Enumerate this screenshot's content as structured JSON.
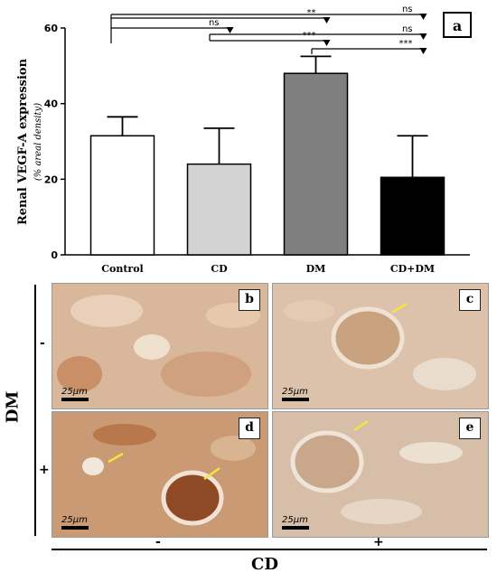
{
  "chart_data": {
    "type": "bar",
    "panel_label": "a",
    "ylabel": "Renal VEGF-A expression",
    "ylabel_sub": "(% areal density)",
    "ylim": [
      0,
      60
    ],
    "yticks": [
      0,
      20,
      40,
      60
    ],
    "categories": [
      "Control",
      "CD",
      "DM",
      "CD+DM"
    ],
    "values": [
      31.5,
      24,
      48,
      20.5
    ],
    "errors": [
      5,
      9.5,
      4.5,
      11
    ],
    "bar_colors": [
      "#ffffff",
      "#d3d3d3",
      "#7f7f7f",
      "#000000"
    ],
    "significance": [
      {
        "from": 0,
        "to": 3,
        "label": "ns"
      },
      {
        "from": 0,
        "to": 2,
        "label": "**"
      },
      {
        "from": 0,
        "to": 1,
        "label": "ns"
      },
      {
        "from": 1,
        "to": 3,
        "label": "ns"
      },
      {
        "from": 1,
        "to": 2,
        "label": "***"
      },
      {
        "from": 2,
        "to": 3,
        "label": "***"
      }
    ]
  },
  "micrographs": [
    {
      "label": "b",
      "scale": "25µm",
      "arrows": 0
    },
    {
      "label": "c",
      "scale": "25µm",
      "arrows": 1
    },
    {
      "label": "d",
      "scale": "25µm",
      "arrows": 2
    },
    {
      "label": "e",
      "scale": "25µm",
      "arrows": 1
    }
  ],
  "axes": {
    "dm_label": "DM",
    "dm_minus": "-",
    "dm_plus": "+",
    "cd_label": "CD",
    "cd_minus": "-",
    "cd_plus": "+"
  }
}
